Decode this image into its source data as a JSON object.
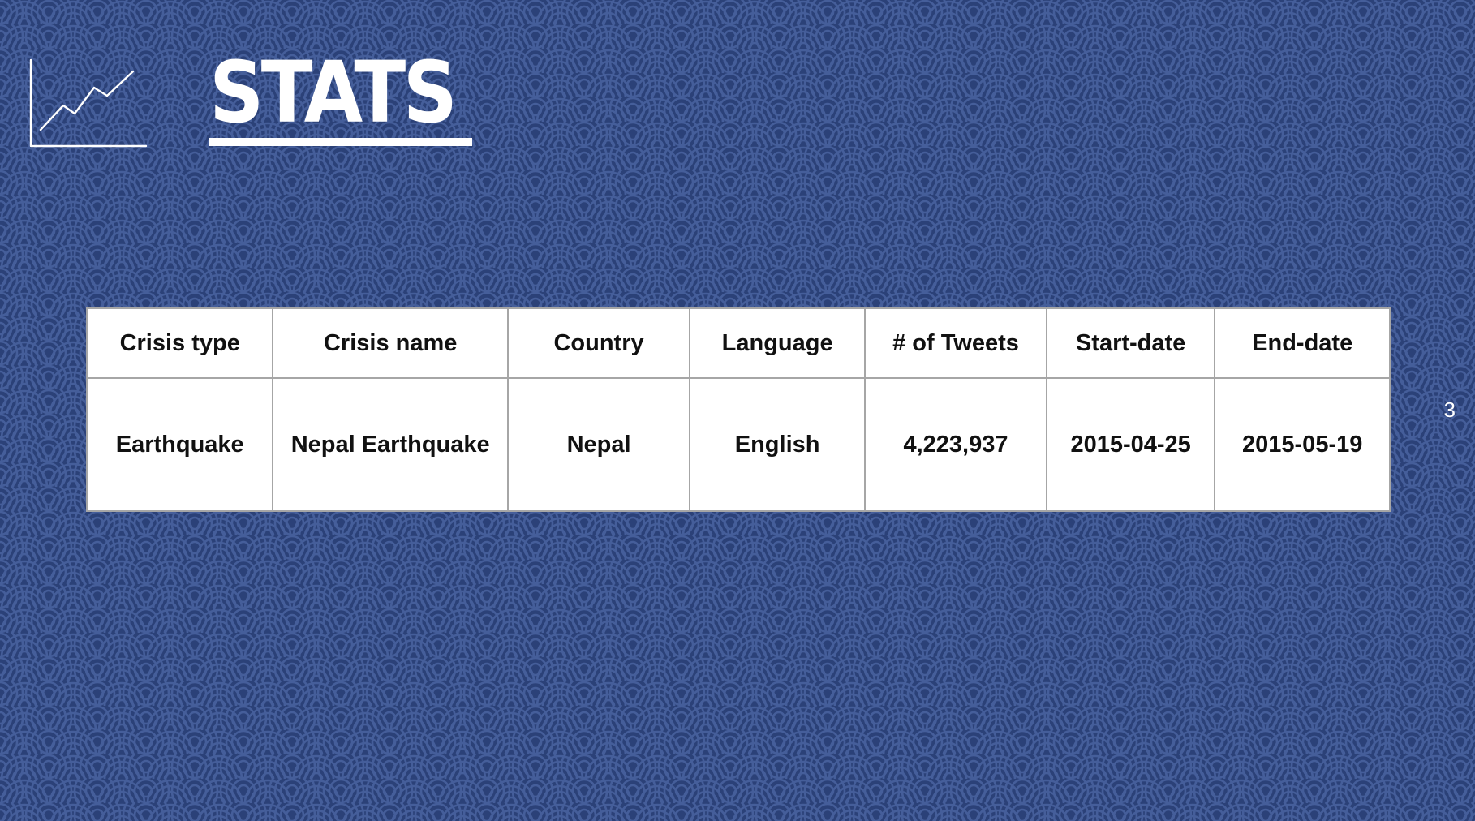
{
  "slide": {
    "title": "STATS",
    "page_number": "3",
    "icon": "line-chart-icon",
    "colors": {
      "background": "#2b4178",
      "pattern": "#4a63a0",
      "table_border": "#a6a6a6",
      "text": "#ffffff"
    }
  },
  "table": {
    "headers": [
      "Crisis type",
      "Crisis name",
      "Country",
      "Language",
      "# of Tweets",
      "Start-date",
      "End-date"
    ],
    "rows": [
      [
        "Earthquake",
        "Nepal Earthquake",
        "Nepal",
        "English",
        "4,223,937",
        "2015-04-25",
        "2015-05-19"
      ]
    ]
  }
}
